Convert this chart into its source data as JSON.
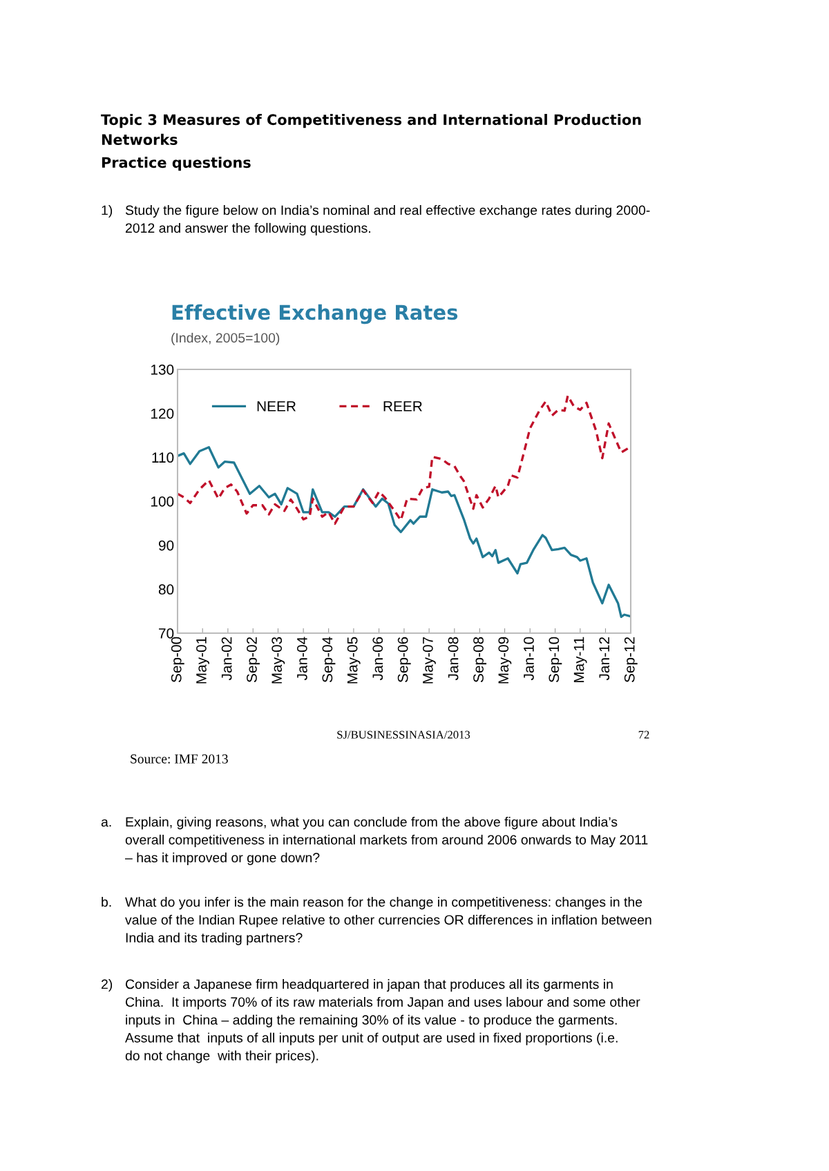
{
  "chart_data": {
    "type": "line",
    "title": "Effective Exchange Rates",
    "subtitle": "(Index, 2005=100)",
    "xlim": [
      "2000-09",
      "2012-09"
    ],
    "ylim": [
      70,
      130
    ],
    "yticks": [
      70,
      80,
      90,
      100,
      110,
      120,
      130
    ],
    "xticks": [
      {
        "value": "2000-09",
        "label": "Sep-00"
      },
      {
        "value": "2001-05",
        "label": "May-01"
      },
      {
        "value": "2002-01",
        "label": "Jan-02"
      },
      {
        "value": "2002-09",
        "label": "Sep-02"
      },
      {
        "value": "2003-05",
        "label": "May-03"
      },
      {
        "value": "2004-01",
        "label": "Jan-04"
      },
      {
        "value": "2004-09",
        "label": "Sep-04"
      },
      {
        "value": "2005-05",
        "label": "May-05"
      },
      {
        "value": "2006-01",
        "label": "Jan-06"
      },
      {
        "value": "2006-09",
        "label": "Sep-06"
      },
      {
        "value": "2007-05",
        "label": "May-07"
      },
      {
        "value": "2008-01",
        "label": "Jan-08"
      },
      {
        "value": "2008-09",
        "label": "Sep-08"
      },
      {
        "value": "2009-05",
        "label": "May-09"
      },
      {
        "value": "2010-01",
        "label": "Jan-10"
      },
      {
        "value": "2010-09",
        "label": "Sep-10"
      },
      {
        "value": "2011-05",
        "label": "May-11"
      },
      {
        "value": "2012-01",
        "label": "Jan-12"
      },
      {
        "value": "2012-09",
        "label": "Sep-12"
      }
    ],
    "legend": "top left",
    "series": [
      {
        "name": "NEER",
        "color": "#217a94",
        "line_style": "solid",
        "x": [
          "2000-09",
          "2000-11",
          "2001-01",
          "2001-04",
          "2001-07",
          "2001-10",
          "2001-12",
          "2002-03",
          "2002-08",
          "2002-11",
          "2003-02",
          "2003-04",
          "2003-06",
          "2003-08",
          "2003-11",
          "2004-01",
          "2004-03",
          "2004-04",
          "2004-07",
          "2004-09",
          "2004-11",
          "2005-02",
          "2005-05",
          "2005-08",
          "2005-12",
          "2006-02",
          "2006-04",
          "2006-06",
          "2006-08",
          "2006-11",
          "2006-12",
          "2007-02",
          "2007-04",
          "2007-06",
          "2007-09",
          "2007-11",
          "2007-12",
          "2008-01",
          "2008-04",
          "2008-06",
          "2008-07",
          "2008-08",
          "2008-10",
          "2008-12",
          "2009-01",
          "2009-02",
          "2009-03",
          "2009-06",
          "2009-09",
          "2009-10",
          "2009-12",
          "2010-02",
          "2010-05",
          "2010-06",
          "2010-08",
          "2010-10",
          "2010-12",
          "2011-02",
          "2011-04",
          "2011-05",
          "2011-07",
          "2011-09",
          "2011-12",
          "2012-02",
          "2012-05",
          "2012-06",
          "2012-07",
          "2012-09"
        ],
        "values": [
          110.3,
          110.9,
          108.5,
          111.4,
          112.3,
          107.7,
          109.0,
          108.8,
          101.7,
          103.5,
          100.9,
          101.7,
          99.3,
          103.0,
          101.7,
          97.5,
          97.5,
          102.7,
          97.5,
          97.5,
          96.5,
          98.8,
          98.8,
          102.7,
          98.8,
          100.6,
          99.5,
          94.6,
          93.0,
          95.7,
          94.9,
          96.5,
          96.5,
          102.7,
          102.0,
          102.2,
          101.2,
          101.4,
          95.9,
          91.5,
          90.4,
          91.5,
          87.3,
          88.3,
          87.5,
          88.9,
          86.0,
          87.0,
          83.6,
          85.7,
          86.0,
          88.9,
          92.3,
          91.7,
          88.9,
          89.1,
          89.4,
          87.8,
          87.3,
          86.5,
          87.0,
          81.5,
          76.8,
          81.0,
          76.8,
          73.7,
          74.2,
          73.8
        ]
      },
      {
        "name": "REER",
        "color": "#c0102a",
        "line_style": "dashed",
        "x": [
          "2000-09",
          "2000-11",
          "2001-01",
          "2001-04",
          "2001-07",
          "2001-10",
          "2001-12",
          "2002-02",
          "2002-04",
          "2002-07",
          "2002-09",
          "2002-12",
          "2003-02",
          "2003-04",
          "2003-07",
          "2003-09",
          "2003-11",
          "2004-01",
          "2004-03",
          "2004-04",
          "2004-07",
          "2004-09",
          "2004-11",
          "2005-02",
          "2005-05",
          "2005-08",
          "2005-11",
          "2006-01",
          "2006-03",
          "2006-06",
          "2006-08",
          "2006-10",
          "2007-01",
          "2007-03",
          "2007-05",
          "2007-06",
          "2007-09",
          "2007-11",
          "2008-01",
          "2008-03",
          "2008-04",
          "2008-07",
          "2008-08",
          "2008-10",
          "2008-12",
          "2009-02",
          "2009-03",
          "2009-06",
          "2009-07",
          "2009-09",
          "2009-11",
          "2010-01",
          "2010-04",
          "2010-06",
          "2010-08",
          "2010-10",
          "2010-12",
          "2011-01",
          "2011-03",
          "2011-05",
          "2011-07",
          "2011-10",
          "2011-12",
          "2012-02",
          "2012-03",
          "2012-06",
          "2012-09"
        ],
        "values": [
          101.7,
          100.9,
          99.6,
          102.7,
          104.8,
          100.6,
          103.0,
          103.8,
          102.2,
          97.2,
          99.1,
          99.1,
          97.0,
          99.3,
          97.8,
          100.4,
          98.3,
          95.9,
          96.5,
          100.6,
          96.5,
          97.5,
          94.9,
          98.8,
          98.8,
          102.5,
          99.6,
          102.2,
          100.8,
          97.8,
          95.7,
          100.6,
          100.4,
          103.0,
          103.3,
          110.1,
          109.6,
          108.5,
          108.0,
          105.6,
          104.6,
          98.3,
          101.4,
          98.6,
          100.6,
          103.5,
          100.9,
          103.5,
          105.9,
          105.4,
          110.9,
          116.6,
          120.6,
          122.7,
          119.5,
          120.8,
          120.6,
          124.0,
          121.6,
          120.8,
          122.4,
          116.1,
          109.8,
          117.7,
          116.1,
          111.1,
          112.4
        ]
      }
    ],
    "annotations": [
      "Topic 3 Measures of Competitiveness and International Production\nNetworks",
      "Practice questions",
      "1)",
      "Study the figure below on India’s nominal and real effective exchange rates during 2000-\n2012 and answer the following questions.",
      "SJ/BUSINESSINASIA/2013",
      "72",
      "Source: IMF 2013",
      "a.",
      "Explain, giving reasons, what you can conclude from the above figure about India’s\noverall competitiveness in international markets from around 2006 onwards to May 2011\n– has it improved or gone down?",
      "b.",
      "What do you infer is the main reason for the change in competitiveness: changes in the\nvalue of the Indian Rupee relative to other currencies OR differences in inflation between\nIndia and its trading partners?",
      "2)",
      "Consider a Japanese firm headquartered in japan that produces all its garments in\nChina.  It imports 70% of its raw materials from Japan and uses labour and some other\ninputs in  China – adding the remaining 30% of its value - to produce the garments.\nAssume that  inputs of all inputs per unit of output are used in fixed proportions (i.e.\ndo not change  with their prices)."
    ]
  }
}
